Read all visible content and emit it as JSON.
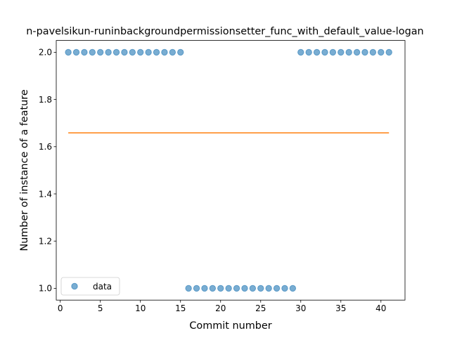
{
  "chart_data": {
    "type": "scatter",
    "title": "n-pavelsikun-runinbackgroundpermissionsetter_func_with_default_value-logan",
    "xlabel": "Commit number",
    "ylabel": "Number of instance of a feature",
    "xlim": [
      -0.5,
      43.0
    ],
    "ylim": [
      0.95,
      2.05
    ],
    "xticks": [
      0,
      5,
      10,
      15,
      20,
      25,
      30,
      35,
      40
    ],
    "yticks": [
      1.0,
      1.2,
      1.4,
      1.6,
      1.8,
      2.0
    ],
    "ytick_labels": [
      "1.0",
      "1.2",
      "1.4",
      "1.6",
      "1.8",
      "2.0"
    ],
    "grid": false,
    "legend": {
      "position": "lower-left",
      "entries": [
        "data"
      ]
    },
    "series": [
      {
        "name": "data",
        "style": "markers",
        "color": "#1f77b4",
        "x": [
          1,
          2,
          3,
          4,
          5,
          6,
          7,
          8,
          9,
          10,
          11,
          12,
          13,
          14,
          15,
          16,
          17,
          18,
          19,
          20,
          21,
          22,
          23,
          24,
          25,
          26,
          27,
          28,
          29,
          30,
          31,
          32,
          33,
          34,
          35,
          36,
          37,
          38,
          39,
          40,
          41
        ],
        "y": [
          2,
          2,
          2,
          2,
          2,
          2,
          2,
          2,
          2,
          2,
          2,
          2,
          2,
          2,
          2,
          1,
          1,
          1,
          1,
          1,
          1,
          1,
          1,
          1,
          1,
          1,
          1,
          1,
          1,
          2,
          2,
          2,
          2,
          2,
          2,
          2,
          2,
          2,
          2,
          2,
          2
        ]
      },
      {
        "style": "line",
        "color": "#ff7f0e",
        "x": [
          1,
          41
        ],
        "y": [
          1.6585,
          1.6585
        ]
      }
    ]
  }
}
